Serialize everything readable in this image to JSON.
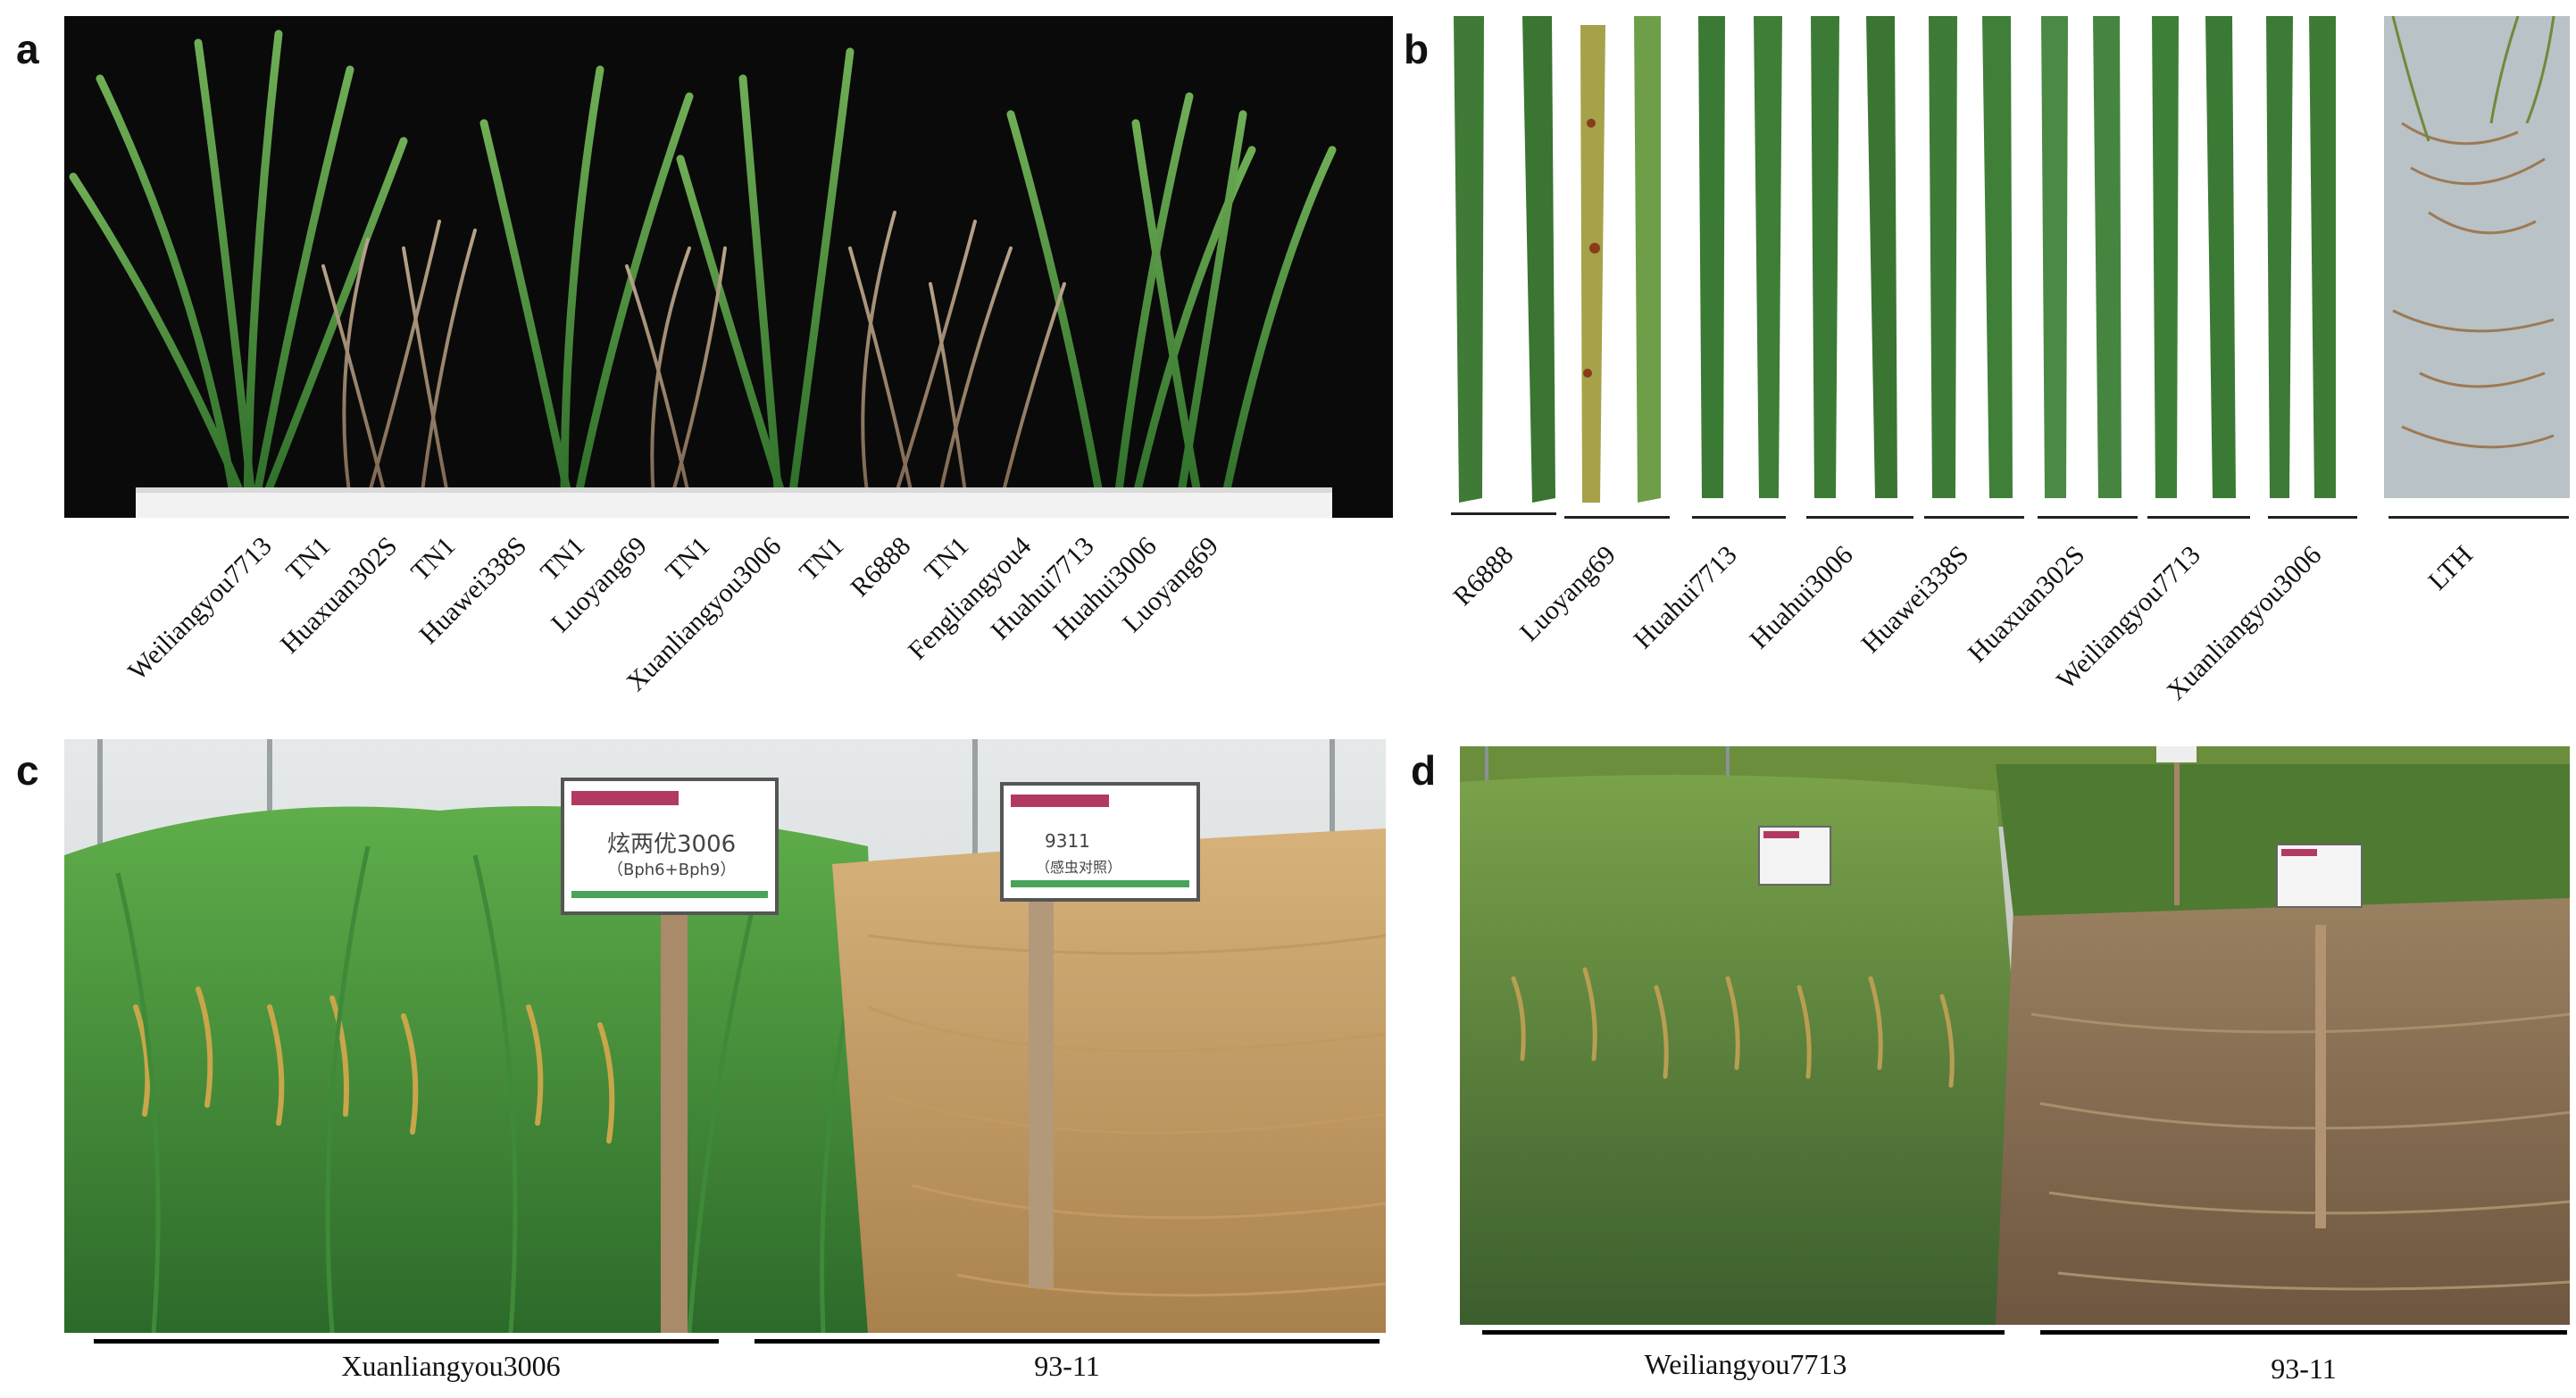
{
  "panels": {
    "a": {
      "letter": "a",
      "labels": [
        "Weiliangyou7713",
        "TN1",
        "Huaxuan302S",
        "TN1",
        "Huawei338S",
        "TN1",
        "Luoyang69",
        "TN1",
        "Xuanliangyou3006",
        "TN1",
        "R6888",
        "TN1",
        "Fengliangyou4",
        "Huahui7713",
        "Huahui3006",
        "Luoyang69"
      ]
    },
    "b": {
      "letter": "b",
      "labels": [
        "R6888",
        "Luoyang69",
        "Huahui7713",
        "Huahui3006",
        "Huawei338S",
        "Huaxuan302S",
        "Weiliangyou7713",
        "Xuanliangyou3006",
        "LTH"
      ]
    },
    "c": {
      "letter": "c",
      "left_label": "Xuanliangyou3006",
      "right_label": "93-11",
      "sign_left": {
        "line1": "炫两优3006",
        "line2": "（Bph6+Bph9）"
      },
      "sign_right": {
        "line1": "9311",
        "line2": "（感虫对照）"
      }
    },
    "d": {
      "letter": "d",
      "left_label": "Weiliangyou7713",
      "right_label": "93-11"
    }
  }
}
